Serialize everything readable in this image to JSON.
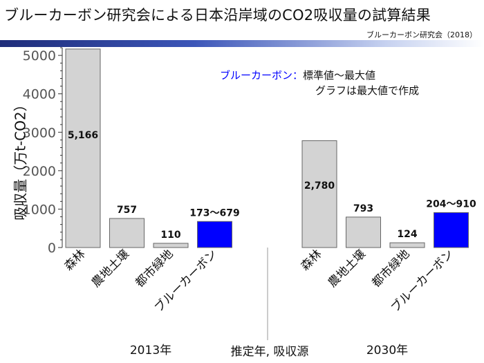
{
  "header": {
    "title": "ブルーカーボン研究会による日本沿岸域のCO2吸収量の試算結果",
    "source": "ブルーカーボン研究会（2018）"
  },
  "legend": {
    "key": "ブルーカーボン：",
    "line1": "標準値～最大値",
    "line2": "グラフは最大値で作成"
  },
  "colors": {
    "gray_bar": "#d3d3d3",
    "blue_bar": "#0000ff",
    "axis": "#555555"
  },
  "chart_data": {
    "type": "bar",
    "title": "ブルーカーボン研究会による日本沿岸域のCO2吸収量の試算結果",
    "ylabel": "吸収量（万t-CO2）",
    "xlabel": "推定年, 吸収源",
    "ylim": [
      0,
      5200
    ],
    "yticks": [
      0,
      1000,
      2000,
      3000,
      4000,
      5000
    ],
    "grid": false,
    "groups": [
      {
        "name": "2013年",
        "bars": [
          {
            "category": "森林",
            "value": 5166,
            "label": "5,166",
            "color": "gray"
          },
          {
            "category": "農地土壌",
            "value": 757,
            "label": "757",
            "color": "gray"
          },
          {
            "category": "都市緑地",
            "value": 110,
            "label": "110",
            "color": "gray"
          },
          {
            "category": "ブルーカーボン",
            "value": 679,
            "label": "173～679",
            "color": "blue"
          }
        ]
      },
      {
        "name": "2030年",
        "bars": [
          {
            "category": "森林",
            "value": 2780,
            "label": "2,780",
            "color": "gray"
          },
          {
            "category": "農地土壌",
            "value": 793,
            "label": "793",
            "color": "gray"
          },
          {
            "category": "都市緑地",
            "value": 124,
            "label": "124",
            "color": "gray"
          },
          {
            "category": "ブルーカーボン",
            "value": 910,
            "label": "204～910",
            "color": "blue"
          }
        ]
      }
    ]
  }
}
